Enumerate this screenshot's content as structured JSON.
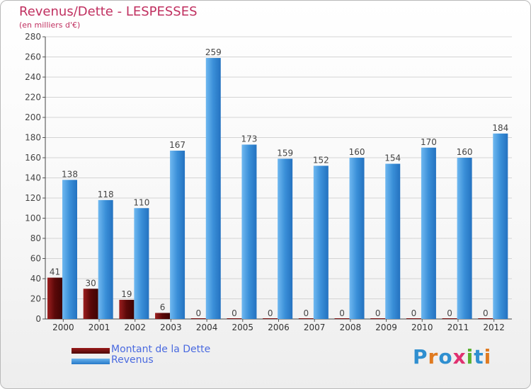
{
  "chart_data": {
    "type": "bar",
    "title": "Revenus/Dette - LESPESSES",
    "subtitle": "(en milliers d'€)",
    "categories": [
      "2000",
      "2001",
      "2002",
      "2003",
      "2004",
      "2005",
      "2006",
      "2007",
      "2008",
      "2009",
      "2010",
      "2011",
      "2012"
    ],
    "series": [
      {
        "name": "Montant de la Dette",
        "values": [
          41,
          30,
          19,
          6,
          0,
          0,
          0,
          0,
          0,
          0,
          0,
          0,
          0
        ],
        "color": "#7a0c0c"
      },
      {
        "name": "Revenus",
        "values": [
          138,
          118,
          110,
          167,
          259,
          173,
          159,
          152,
          160,
          154,
          170,
          160,
          184
        ],
        "color": "#3a8fd8"
      }
    ],
    "ylim": [
      0,
      280
    ],
    "yticks": [
      0,
      20,
      40,
      60,
      80,
      100,
      120,
      140,
      160,
      180,
      200,
      220,
      240,
      260,
      280
    ],
    "grid": true,
    "legend_position": "bottom-left"
  },
  "logo": {
    "text": "Proxiti",
    "colors": [
      "#2f8fd0",
      "#e07a20",
      "#2f8fd0",
      "#e03070",
      "#5ab030",
      "#2f8fd0",
      "#e07a20"
    ]
  }
}
